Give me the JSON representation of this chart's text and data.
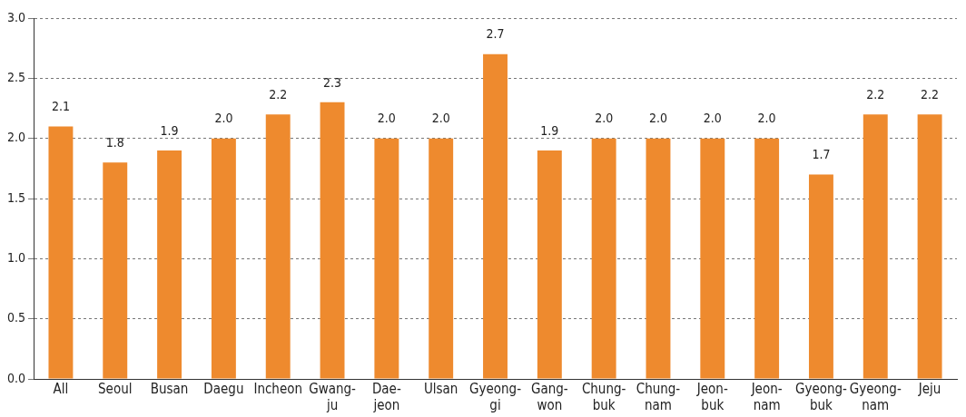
{
  "chart_data": {
    "type": "bar",
    "categories": [
      "All",
      "Seoul",
      "Busan",
      "Daegu",
      "Incheon",
      "Gwang-ju",
      "Dae-jeon",
      "Ulsan",
      "Gyeong-gi",
      "Gang-won",
      "Chung-buk",
      "Chung-nam",
      "Jeon-buk",
      "Jeon-nam",
      "Gyeong-buk",
      "Gyeong-nam",
      "Jeju"
    ],
    "values": [
      2.1,
      1.8,
      1.9,
      2.0,
      2.2,
      2.3,
      2.0,
      2.0,
      2.7,
      1.9,
      2.0,
      2.0,
      2.0,
      2.0,
      1.7,
      2.2,
      2.2
    ],
    "color": "#ee8a2e",
    "ylim": [
      0,
      3.0
    ],
    "yticks": [
      {
        "value": 0,
        "label": "0.0"
      },
      {
        "value": 0.5,
        "label": "0.5"
      },
      {
        "value": 1,
        "label": "1.0"
      },
      {
        "value": 1.5,
        "label": "1.5"
      },
      {
        "value": 2,
        "label": "2.0"
      },
      {
        "value": 2.5,
        "label": "2.5"
      },
      {
        "value": 3,
        "label": "3.0"
      }
    ],
    "grid": "y",
    "value_labels": [
      "2.1",
      "1.8",
      "1.9",
      "2.0",
      "2.2",
      "2.3",
      "2.0",
      "2.0",
      "2.7",
      "1.9",
      "2.0",
      "2.0",
      "2.0",
      "2.0",
      "1.7",
      "2.2",
      "2.2"
    ]
  }
}
